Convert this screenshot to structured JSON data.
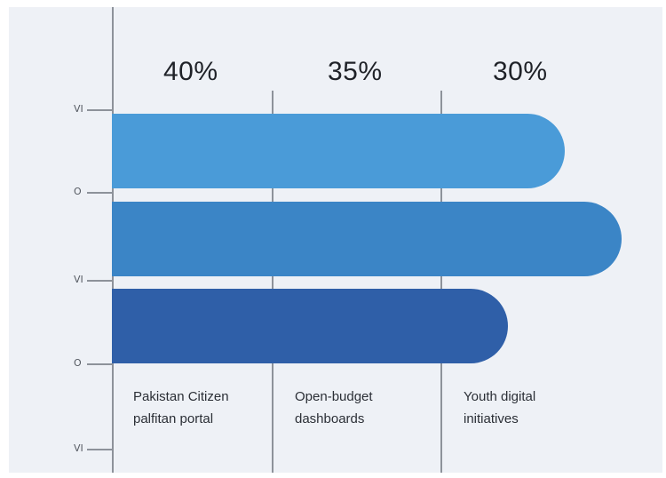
{
  "chart_data": {
    "type": "bar",
    "orientation": "horizontal",
    "top_labels": [
      "40%",
      "35%",
      "30%"
    ],
    "categories": [
      "Pakistan Citizen\npalfitan portal",
      "Open-budget\ndashboards",
      "Youth digital\ninitiatives"
    ],
    "y_tick_labels": [
      "VI",
      "O",
      "VI",
      "O",
      "VI"
    ],
    "bars": [
      {
        "value": 40,
        "color": "#4a9bd8"
      },
      {
        "value": 45,
        "color": "#3b85c6"
      },
      {
        "value": 35,
        "color": "#2f5fa8"
      }
    ],
    "xlim": [
      0,
      45
    ],
    "grid": "vertical lines at column boundaries",
    "legend": "none"
  }
}
